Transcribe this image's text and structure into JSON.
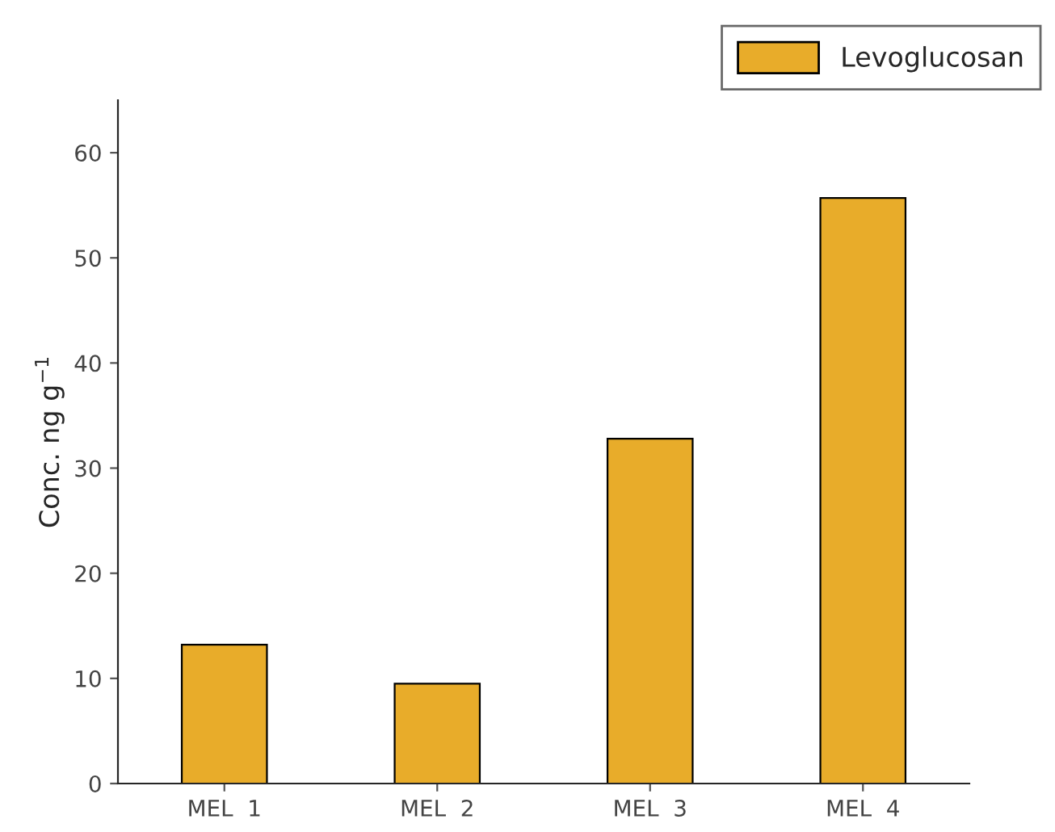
{
  "chart_data": {
    "type": "bar",
    "ylabel": "Conc. ng g$^{−1}$",
    "categories": [
      "MEL  1",
      "MEL  2",
      "MEL  3",
      "MEL  4"
    ],
    "series": [
      {
        "name": "Levoglucosan",
        "color": "#e8ac2a",
        "values": [
          13.2,
          9.5,
          32.8,
          55.7
        ]
      }
    ],
    "ylim": [
      0,
      65
    ],
    "yticks": [
      0,
      10,
      20,
      30,
      40,
      50,
      60
    ],
    "grid": false,
    "legend": "top right"
  }
}
